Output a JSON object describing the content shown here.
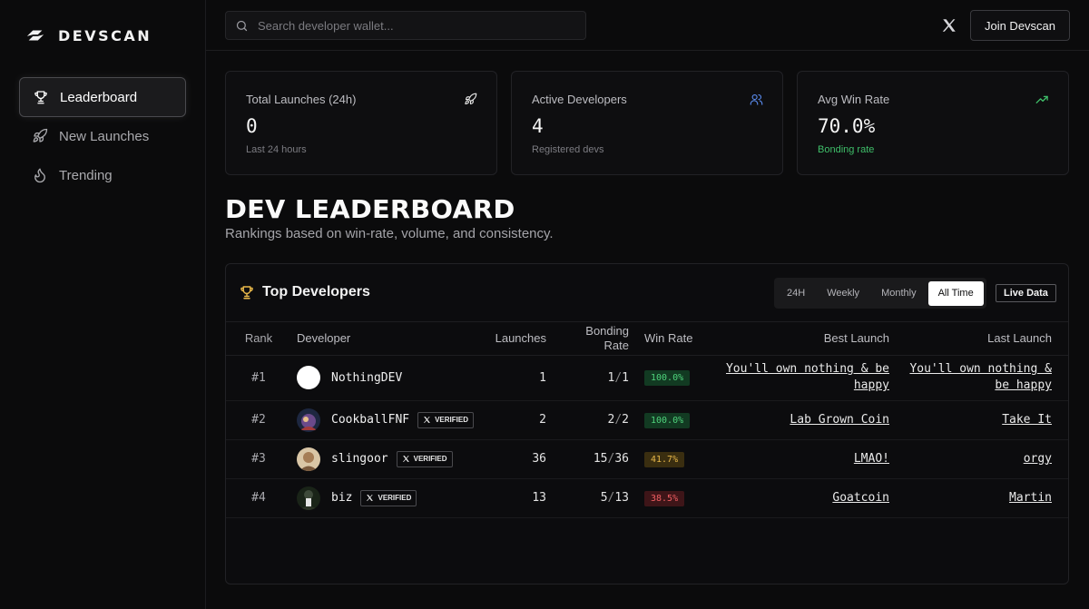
{
  "brand": {
    "name": "DEVSCAN"
  },
  "sidebar": {
    "items": [
      {
        "label": "Leaderboard",
        "icon": "trophy-icon",
        "active": true
      },
      {
        "label": "New Launches",
        "icon": "rocket-icon",
        "active": false
      },
      {
        "label": "Trending",
        "icon": "flame-icon",
        "active": false
      }
    ]
  },
  "topbar": {
    "search_placeholder": "Search developer wallet...",
    "join_label": "Join Devscan"
  },
  "stats": [
    {
      "label": "Total Launches (24h)",
      "value": "0",
      "sub": "Last 24 hours",
      "icon": "rocket-icon"
    },
    {
      "label": "Active Developers",
      "value": "4",
      "sub": "Registered devs",
      "icon": "users-icon"
    },
    {
      "label": "Avg Win Rate",
      "value": "70.0%",
      "sub": "Bonding rate",
      "icon": "trending-up-icon"
    }
  ],
  "heading": {
    "title": "DEV LEADERBOARD",
    "subtitle": "Rankings based on win-rate, volume, and consistency."
  },
  "board": {
    "title": "Top Developers",
    "periods": [
      "24H",
      "Weekly",
      "Monthly",
      "All Time"
    ],
    "active_period": "All Time",
    "live_label": "Live Data",
    "columns": {
      "rank": "Rank",
      "developer": "Developer",
      "launches": "Launches",
      "bonding_1": "Bonding",
      "bonding_2": "Rate",
      "win_rate": "Win Rate",
      "best": "Best Launch",
      "last": "Last Launch"
    },
    "verified_label": "VERIFIED",
    "rows": [
      {
        "rank": "#1",
        "name": "NothingDEV",
        "verified": false,
        "launches": "1",
        "bonded": "1",
        "total": "1",
        "win": "100.0%",
        "level": "high",
        "best": "You'll own nothing & be happy",
        "last": "You'll own nothing & be happy"
      },
      {
        "rank": "#2",
        "name": "CookballFNF",
        "verified": true,
        "launches": "2",
        "bonded": "2",
        "total": "2",
        "win": "100.0%",
        "level": "high",
        "best": "Lab Grown Coin",
        "last": "Take It"
      },
      {
        "rank": "#3",
        "name": "slingoor",
        "verified": true,
        "launches": "36",
        "bonded": "15",
        "total": "36",
        "win": "41.7%",
        "level": "mid",
        "best": "LMAO!",
        "last": "orgy"
      },
      {
        "rank": "#4",
        "name": "biz",
        "verified": true,
        "launches": "13",
        "bonded": "5",
        "total": "13",
        "win": "38.5%",
        "level": "low",
        "best": "Goatcoin",
        "last": "Martin"
      }
    ]
  }
}
